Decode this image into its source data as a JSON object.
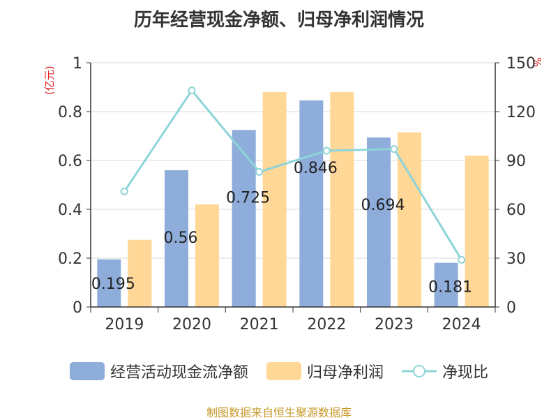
{
  "chart_data": {
    "type": "bar",
    "title": "历年经营现金净额、归母净利润情况",
    "categories": [
      "2019",
      "2020",
      "2021",
      "2022",
      "2023",
      "2024"
    ],
    "series": [
      {
        "name": "经营活动现金流净额",
        "type": "bar",
        "axis": "left",
        "color": "#8EADDB",
        "values": [
          0.195,
          0.56,
          0.725,
          0.846,
          0.694,
          0.181
        ]
      },
      {
        "name": "归母净利润",
        "type": "bar",
        "axis": "left",
        "color": "#FFD797",
        "values": [
          0.275,
          0.42,
          0.88,
          0.88,
          0.715,
          0.62
        ]
      },
      {
        "name": "净现比",
        "type": "line",
        "axis": "right",
        "color": "#8ED4D9",
        "values": [
          71,
          133,
          83,
          96,
          97,
          29
        ]
      }
    ],
    "data_labels": [
      "0.195",
      "0.56",
      "0.725",
      "0.846",
      "0.694",
      "0.181"
    ],
    "y_left": {
      "label": "(亿元)",
      "ylim": [
        0,
        1
      ],
      "ticks": [
        "0",
        "0.2",
        "0.4",
        "0.6",
        "0.8",
        "1"
      ]
    },
    "y_right": {
      "label": "%",
      "ylim": [
        0,
        150
      ],
      "ticks": [
        "0",
        "30",
        "60",
        "90",
        "120",
        "150"
      ]
    },
    "legend_position": "bottom",
    "source": "制图数据来自恒生聚源数据库"
  }
}
